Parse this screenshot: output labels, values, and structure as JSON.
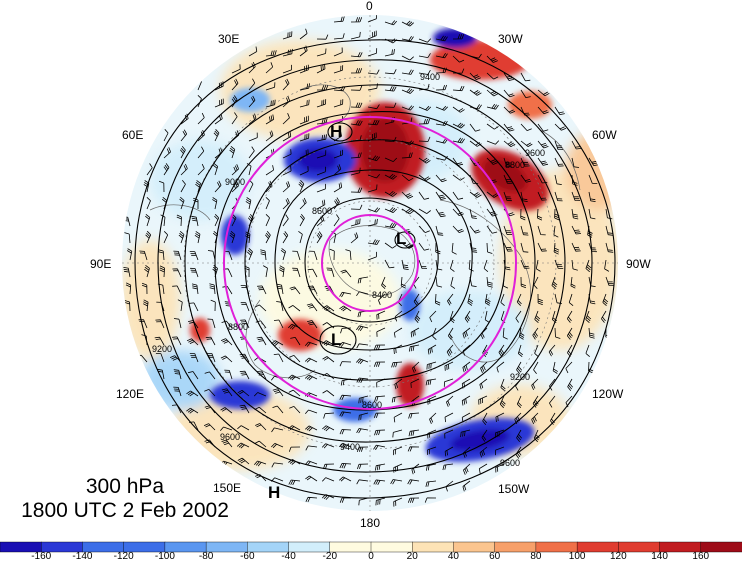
{
  "map": {
    "projection": "north polar stereographic",
    "longitude_labels": [
      "0",
      "30W",
      "60W",
      "90W",
      "120W",
      "150W",
      "180",
      "150E",
      "120E",
      "90E",
      "60E",
      "30E"
    ],
    "pressure_centers": [
      "H",
      "H",
      "L",
      "L"
    ],
    "contour_labels": [
      "9400",
      "9600",
      "8800",
      "8400",
      "8800",
      "9200",
      "9600",
      "8600",
      "9400",
      "9600",
      "9000",
      "9200",
      "8600"
    ],
    "shading_palette": [
      "#1a0fb4",
      "#2b38d6",
      "#3c6ee8",
      "#5a96f0",
      "#7eb6f5",
      "#a4d4f8",
      "#d2eefb",
      "#fffbe0",
      "#fde3b6",
      "#fbc58f",
      "#f7a06a",
      "#f07048",
      "#e03c30",
      "#c11c20",
      "#9e0c18"
    ],
    "contour_color": "#000000",
    "ring_color": "#e020d8"
  },
  "caption": {
    "level": "300 hPa",
    "datetime": "1800 UTC 2 Feb 2002"
  },
  "colorbar": {
    "tick_labels": [
      "-160",
      "-140",
      "-120",
      "-100",
      "-80",
      "-60",
      "-40",
      "-20",
      "0",
      "20",
      "40",
      "60",
      "80",
      "100",
      "120",
      "140",
      "160"
    ]
  }
}
